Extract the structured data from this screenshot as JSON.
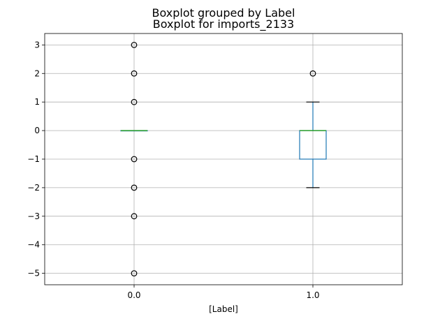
{
  "chart_data": {
    "type": "boxplot",
    "title": "Boxplot grouped by Label",
    "subtitle": "Boxplot for imports_2133",
    "xlabel": "[Label]",
    "ylabel": "",
    "ylim": [
      -5.4,
      3.4
    ],
    "yticks": [
      3,
      2,
      1,
      0,
      -1,
      -2,
      -3,
      -4,
      -5
    ],
    "ytick_labels": [
      "3",
      "2",
      "1",
      "0",
      "−1",
      "−2",
      "−3",
      "−4",
      "−5"
    ],
    "grid": true,
    "categories": [
      "0.0",
      "1.0"
    ],
    "boxes": [
      {
        "category": "0.0",
        "q1": 0,
        "median": 0,
        "q3": 0,
        "whisker_low": 0,
        "whisker_high": 0,
        "outliers": [
          3,
          2,
          1,
          -1,
          -2,
          -3,
          -5
        ]
      },
      {
        "category": "1.0",
        "q1": -1,
        "median": 0,
        "q3": 0,
        "whisker_low": -2,
        "whisker_high": 1,
        "outliers": [
          2
        ]
      }
    ],
    "colors": {
      "box": "#1f77b4",
      "median": "#2ca02c",
      "whisker_cap": "#000000",
      "outlier": "#000000"
    }
  }
}
